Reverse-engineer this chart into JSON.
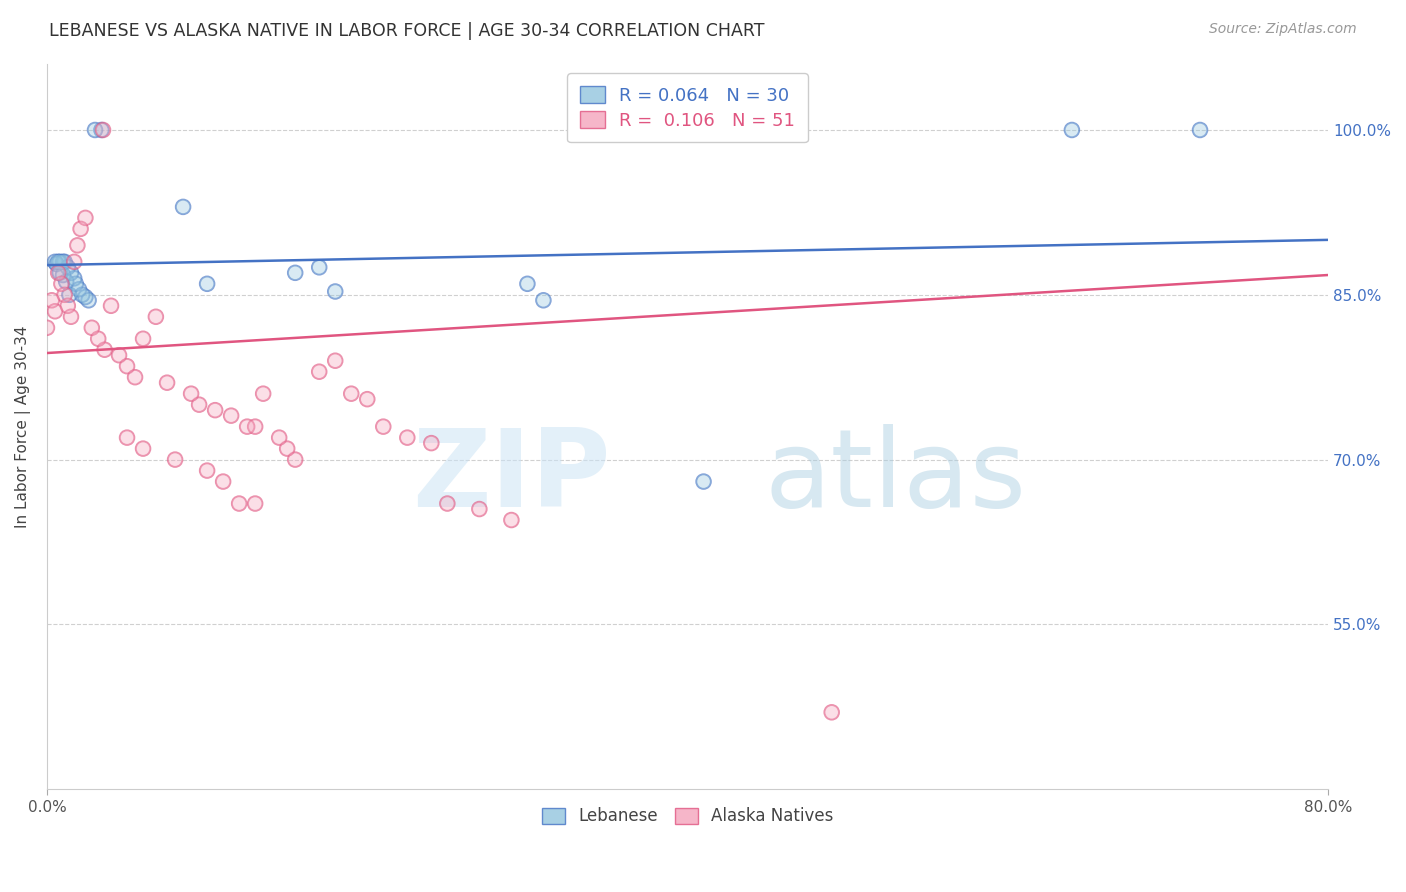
{
  "title": "LEBANESE VS ALASKA NATIVE IN LABOR FORCE | AGE 30-34 CORRELATION CHART",
  "source": "Source: ZipAtlas.com",
  "ylabel": "In Labor Force | Age 30-34",
  "x_min": 0.0,
  "x_max": 0.8,
  "y_min": 0.4,
  "y_max": 1.06,
  "y_ticks": [
    1.0,
    0.85,
    0.7,
    0.55
  ],
  "y_tick_labels": [
    "100.0%",
    "85.0%",
    "70.0%",
    "55.0%"
  ],
  "x_ticks": [
    0.0,
    0.8
  ],
  "x_tick_labels": [
    "0.0%",
    "80.0%"
  ],
  "blue_scatter_x": [
    0.03,
    0.034,
    0.005,
    0.007,
    0.008,
    0.01,
    0.011,
    0.013,
    0.015,
    0.017,
    0.018,
    0.02,
    0.022,
    0.024,
    0.026,
    0.085,
    0.1,
    0.155,
    0.17,
    0.18,
    0.3,
    0.31,
    0.41,
    0.64,
    0.72,
    0.006,
    0.008,
    0.01,
    0.012,
    0.014
  ],
  "blue_scatter_y": [
    1.0,
    1.0,
    0.88,
    0.88,
    0.88,
    0.88,
    0.88,
    0.875,
    0.87,
    0.865,
    0.86,
    0.855,
    0.85,
    0.848,
    0.845,
    0.93,
    0.86,
    0.87,
    0.875,
    0.853,
    0.86,
    0.845,
    0.68,
    1.0,
    1.0,
    0.878,
    0.87,
    0.868,
    0.862,
    0.85
  ],
  "pink_scatter_x": [
    0.0,
    0.003,
    0.005,
    0.007,
    0.009,
    0.011,
    0.013,
    0.015,
    0.017,
    0.019,
    0.021,
    0.024,
    0.028,
    0.032,
    0.036,
    0.04,
    0.045,
    0.05,
    0.055,
    0.06,
    0.068,
    0.075,
    0.09,
    0.095,
    0.105,
    0.115,
    0.125,
    0.13,
    0.135,
    0.145,
    0.15,
    0.155,
    0.17,
    0.18,
    0.19,
    0.2,
    0.21,
    0.225,
    0.24,
    0.25,
    0.27,
    0.29,
    0.12,
    0.13,
    0.11,
    0.1,
    0.08,
    0.06,
    0.05,
    0.035,
    0.49
  ],
  "pink_scatter_y": [
    0.82,
    0.845,
    0.835,
    0.87,
    0.86,
    0.85,
    0.84,
    0.83,
    0.88,
    0.895,
    0.91,
    0.92,
    0.82,
    0.81,
    0.8,
    0.84,
    0.795,
    0.785,
    0.775,
    0.81,
    0.83,
    0.77,
    0.76,
    0.75,
    0.745,
    0.74,
    0.73,
    0.73,
    0.76,
    0.72,
    0.71,
    0.7,
    0.78,
    0.79,
    0.76,
    0.755,
    0.73,
    0.72,
    0.715,
    0.66,
    0.655,
    0.645,
    0.66,
    0.66,
    0.68,
    0.69,
    0.7,
    0.71,
    0.72,
    1.0,
    0.47
  ],
  "blue_line_x": [
    0.0,
    0.8
  ],
  "blue_line_y": [
    0.877,
    0.9
  ],
  "pink_line_x": [
    0.0,
    0.8
  ],
  "pink_line_y": [
    0.797,
    0.868
  ],
  "blue_color": "#92c5de",
  "pink_color": "#f4a4bc",
  "blue_line_color": "#4472c4",
  "pink_line_color": "#e05580",
  "right_axis_color": "#4472c4",
  "grid_color": "#d0d0d0",
  "background_color": "#ffffff",
  "title_color": "#333333"
}
